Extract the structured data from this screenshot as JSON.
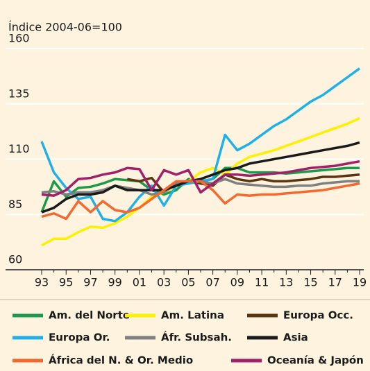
{
  "chart_data": {
    "type": "line",
    "y_label": "Índice 2004-06=100",
    "categories": [
      "93",
      null,
      "95",
      null,
      "97",
      null,
      "99",
      null,
      "01",
      null,
      "03",
      null,
      "05",
      null,
      "07",
      null,
      "09",
      null,
      "11",
      null,
      "13",
      null,
      "15",
      null,
      "17",
      null,
      "19"
    ],
    "ylim": [
      60,
      160
    ],
    "yticks": [
      60,
      85,
      110,
      135,
      160
    ],
    "grid": true,
    "series": [
      {
        "name": "Am. del Norte",
        "color": "#1a9a4a",
        "values": [
          86,
          100,
          93,
          97,
          97.5,
          99,
          101,
          100.5,
          100,
          96,
          94,
          96,
          101,
          100,
          101,
          106,
          106,
          104,
          104,
          104,
          103.5,
          104,
          104.5,
          105,
          105.5,
          106,
          106
        ]
      },
      {
        "name": "Am. Latina",
        "color": "#ffef00",
        "values": [
          71,
          74,
          74,
          77,
          79.5,
          79,
          81,
          84,
          88,
          93,
          95,
          98,
          100,
          104,
          106,
          103,
          108,
          111,
          112.5,
          114,
          116,
          118,
          120,
          122,
          124,
          126,
          128.5
        ]
      },
      {
        "name": "Europa Occ.",
        "color": "#5c3510",
        "values": [
          null,
          null,
          null,
          null,
          null,
          null,
          null,
          101,
          100,
          101.5,
          95,
          99,
          100,
          99,
          98,
          103,
          101,
          100,
          101,
          100,
          100,
          100.5,
          101,
          102,
          102,
          102.5,
          103
        ]
      },
      {
        "name": "Europa Or.",
        "color": "#1fb0e8",
        "values": [
          118,
          104,
          97,
          92,
          93,
          83,
          82,
          86,
          93,
          98,
          89,
          98,
          99,
          100,
          101,
          121,
          114,
          117,
          121,
          125,
          128,
          132,
          136,
          139,
          143,
          147,
          151
        ]
      },
      {
        "name": "Áfr. Subsah.",
        "color": "#808080",
        "values": [
          95,
          95.5,
          94,
          95,
          95,
          96,
          98,
          97,
          96,
          94,
          95,
          99,
          100,
          100,
          99,
          101,
          99,
          98.5,
          98,
          97.5,
          97.5,
          98,
          98,
          99,
          99.5,
          100,
          100
        ]
      },
      {
        "name": "Asia",
        "color": "#1a1a1a",
        "values": [
          86,
          88,
          92,
          94,
          94,
          95,
          98,
          96,
          96,
          96,
          96,
          98,
          100,
          101,
          103,
          105,
          106,
          108,
          109,
          110,
          111,
          112,
          113,
          114,
          115,
          116,
          117.5
        ]
      },
      {
        "name": "África del N. & Or. Medio",
        "color": "#f26a30",
        "values": [
          84,
          85.5,
          83,
          91,
          86,
          91,
          87,
          86,
          88,
          92,
          96,
          100,
          100,
          100,
          96,
          90,
          94,
          93.5,
          94,
          94,
          94.5,
          95,
          95.5,
          96,
          97,
          98,
          99
        ]
      },
      {
        "name": "Oceanía & Japón",
        "color": "#a0206a",
        "values": [
          94,
          93.5,
          96,
          101,
          101.5,
          103,
          104,
          106,
          105.5,
          96,
          105,
          103,
          105,
          95,
          99,
          103,
          103,
          102.5,
          103,
          103.5,
          104,
          105,
          106,
          106.5,
          107,
          108,
          109
        ]
      }
    ]
  }
}
